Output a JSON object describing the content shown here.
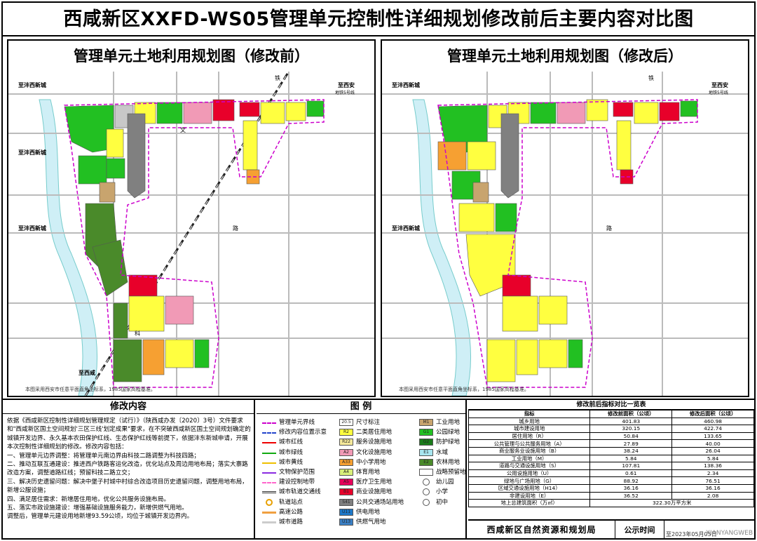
{
  "title": "西咸新区XXFD-WS05管理单元控制性详细规划修改前后主要内容对比图",
  "panels": {
    "before_title": "管理单元土地利用规划图（修改前）",
    "after_title": "管理单元土地利用规划图（修改后）",
    "map_note": "本图采用西安市任意平面直角坐标系，1985国家高程基准。"
  },
  "map_labels": {
    "to_fengxi_1": "至沣西新城",
    "to_fengxi_2": "至沣西新城",
    "to_fengxi_3": "至沣西新城",
    "to_xixian": "至西咸",
    "to_xian": "至西安",
    "metro_line": "地铁5号线",
    "road_wen": "文",
    "road_ke": "科",
    "road_lu": "路",
    "road_tie": "铁"
  },
  "modifications": {
    "heading": "修改内容",
    "paragraphs": [
      "依据《西咸新区控制性详细规划管理规定（试行）》（陕西咸办发〔2020〕3号）文件要求和\"西咸新区国土空间规划'三区三线'划定成果\"要求，在不突破西咸新区国土空间规划确定的城镇开发边界、永久基本农田保护红线、生态保护红线等前提下，依据沣东新城申请，开展本次控制性详细规划的修改。修改内容包括：",
      "一、管理单元边界调整：将管理单元南边界由科技二路调整为科技四路；",
      "二、推动互联互通建设：推进西户铁路客运化改造，优化站点及周边用地布局；落实大寨路改造方案，调整道路红线；预留科技二路立交；",
      "三、解决历史遗留问题：解决中堡子村城中村综合改造项目历史遗留问题，调整用地布局，新增公服设施；",
      "四、满足居住需求：新增居住用地，优化公共服务设施布局。",
      "五、落实市政设施建设：增强基础设施服务能力，新增供燃气用地。",
      "调整后，管理单元建设用地新增93.59公顷，均位于城镇开发边界内。"
    ]
  },
  "legend": {
    "heading": "图 例",
    "col1": [
      {
        "label": "管理单元界线",
        "style": "dash-magenta"
      },
      {
        "label": "修改内容位置示意",
        "style": "dash-blue"
      },
      {
        "label": "城市红线",
        "style": "line-red"
      },
      {
        "label": "城市绿线",
        "style": "line-green"
      },
      {
        "label": "城市黄线",
        "style": "line-yellow"
      },
      {
        "label": "文物保护范围",
        "style": "line-purple"
      },
      {
        "label": "建设控制地带",
        "style": "dash-pink"
      },
      {
        "label": "城市轨道交通线",
        "style": "rail"
      },
      {
        "label": "轨道站点",
        "style": "station"
      },
      {
        "label": "高速公路",
        "style": "line-orange"
      },
      {
        "label": "城市道路",
        "style": "line-gray"
      }
    ],
    "col2": [
      {
        "code": "20.5",
        "label": "尺寸标注",
        "color": "#ffffff"
      },
      {
        "code": "R2",
        "label": "二类居住用地",
        "color": "#ffff40"
      },
      {
        "code": "R22",
        "label": "服务设施用地",
        "color": "#f5e99b"
      },
      {
        "code": "A2",
        "label": "文化设施用地",
        "color": "#f19ab6"
      },
      {
        "code": "A33",
        "label": "中小学用地",
        "color": "#f6a032"
      },
      {
        "code": "A4",
        "label": "体育用地",
        "color": "#d8f07a"
      },
      {
        "code": "A5",
        "label": "医疗卫生用地",
        "color": "#e6005a"
      },
      {
        "code": "B1",
        "label": "商业设施用地",
        "color": "#e8002a"
      },
      {
        "code": "S41",
        "label": "公共交通场站用地",
        "color": "#808080"
      },
      {
        "code": "U11",
        "label": "供电用地",
        "color": "#1e78c8"
      },
      {
        "code": "U13",
        "label": "供燃气用地",
        "color": "#3a7fc4"
      }
    ],
    "col3": [
      {
        "code": "M1",
        "label": "工业用地",
        "color": "#c8a46e"
      },
      {
        "code": "G1",
        "label": "公园绿地",
        "color": "#22c022"
      },
      {
        "code": "G2",
        "label": "防护绿地",
        "color": "#197a19"
      },
      {
        "code": "E1",
        "label": "水域",
        "color": "#a8e6f0"
      },
      {
        "code": "E2",
        "label": "农林用地",
        "color": "#4a8a2a"
      },
      {
        "code": "",
        "label": "战略预留地",
        "color": "#ffffff"
      },
      {
        "code": "",
        "label": "幼儿园",
        "color": "icon"
      },
      {
        "code": "",
        "label": "小学",
        "color": "icon"
      },
      {
        "code": "",
        "label": "初中",
        "color": "icon"
      }
    ]
  },
  "comparison_table": {
    "title": "修改前后指标对比一览表",
    "headers": [
      "指标",
      "修改前面积（公顷）",
      "修改后面积（公顷）"
    ],
    "rows": [
      [
        "城乡用地",
        "401.83",
        "460.98"
      ],
      [
        "城市建设用地",
        "320.15",
        "422.74"
      ],
      [
        "居住用地（R）",
        "50.84",
        "133.65"
      ],
      [
        "公共管理与公共服务用地（A）",
        "27.89",
        "40.00"
      ],
      [
        "商业服务业设施用地（B）",
        "38.24",
        "26.04"
      ],
      [
        "工业用地（M）",
        "5.84",
        "5.84"
      ],
      [
        "道路与交通设施用地（S）",
        "107.81",
        "138.36"
      ],
      [
        "公用设施用地（U）",
        "0.61",
        "2.34"
      ],
      [
        "绿地与广场用地（G）",
        "88.92",
        "76.51"
      ],
      [
        "区域交通设施用地（H14）",
        "36.16",
        "36.16"
      ],
      [
        "非建设用地（E）",
        "36.52",
        "2.08"
      ],
      [
        "地上总建筑面积（万㎡）",
        "322.30万平方米",
        ""
      ]
    ]
  },
  "footer": {
    "org": "西咸新区自然资源和规划局",
    "notice_label": "公示时间",
    "notice_date": "至2023年05月05日"
  },
  "watermark": "XIANYANGWEB"
}
